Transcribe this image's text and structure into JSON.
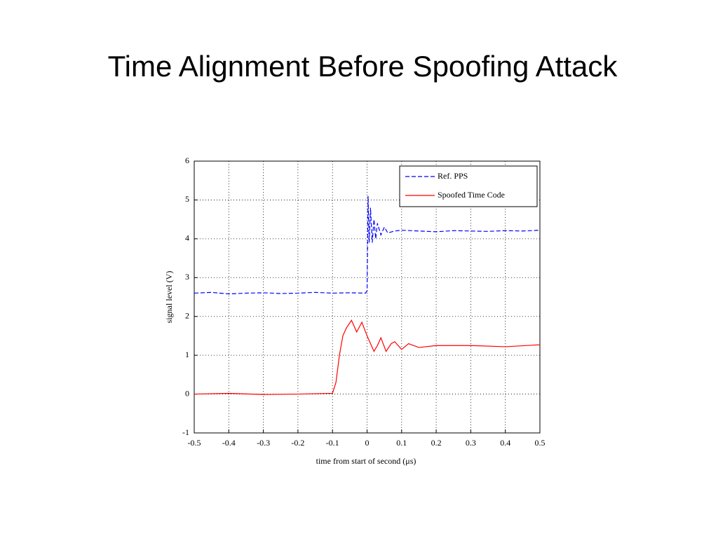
{
  "chart_data": {
    "type": "line",
    "title": "Time Alignment Before Spoofing Attack",
    "x_label": "time from start of second (μs)",
    "y_label": "signal level (V)",
    "xlim": [
      -0.5,
      0.5
    ],
    "ylim": [
      -1,
      6
    ],
    "xticks": [
      -0.5,
      -0.4,
      -0.3,
      -0.2,
      -0.1,
      0,
      0.1,
      0.2,
      0.3,
      0.4,
      0.5
    ],
    "yticks": [
      -1,
      0,
      1,
      2,
      3,
      4,
      5,
      6
    ],
    "grid": true,
    "legend": "top-right",
    "series": [
      {
        "name": "Ref. PPS",
        "color": "#0000ff",
        "dashed": true,
        "x": [
          -0.5,
          -0.45,
          -0.4,
          -0.35,
          -0.3,
          -0.25,
          -0.2,
          -0.15,
          -0.1,
          -0.05,
          -0.005,
          0,
          0.003,
          0.006,
          0.01,
          0.015,
          0.02,
          0.025,
          0.03,
          0.04,
          0.05,
          0.06,
          0.08,
          0.1,
          0.15,
          0.2,
          0.25,
          0.3,
          0.35,
          0.4,
          0.45,
          0.5
        ],
        "values": [
          2.6,
          2.62,
          2.58,
          2.6,
          2.61,
          2.59,
          2.6,
          2.62,
          2.6,
          2.61,
          2.6,
          2.65,
          5.1,
          3.9,
          4.8,
          3.9,
          4.5,
          4.0,
          4.4,
          4.1,
          4.3,
          4.15,
          4.2,
          4.22,
          4.2,
          4.18,
          4.21,
          4.2,
          4.19,
          4.21,
          4.2,
          4.22
        ]
      },
      {
        "name": "Spoofed Time Code",
        "color": "#ff0000",
        "dashed": false,
        "x": [
          -0.5,
          -0.4,
          -0.3,
          -0.2,
          -0.1,
          -0.09,
          -0.08,
          -0.07,
          -0.06,
          -0.045,
          -0.03,
          -0.015,
          0,
          0.01,
          0.02,
          0.03,
          0.04,
          0.055,
          0.07,
          0.08,
          0.1,
          0.12,
          0.15,
          0.2,
          0.3,
          0.4,
          0.5
        ],
        "values": [
          0,
          0.02,
          -0.01,
          0,
          0.02,
          0.3,
          1.0,
          1.5,
          1.7,
          1.9,
          1.6,
          1.85,
          1.5,
          1.3,
          1.1,
          1.25,
          1.45,
          1.1,
          1.3,
          1.35,
          1.15,
          1.3,
          1.2,
          1.25,
          1.25,
          1.22,
          1.27
        ]
      }
    ]
  }
}
